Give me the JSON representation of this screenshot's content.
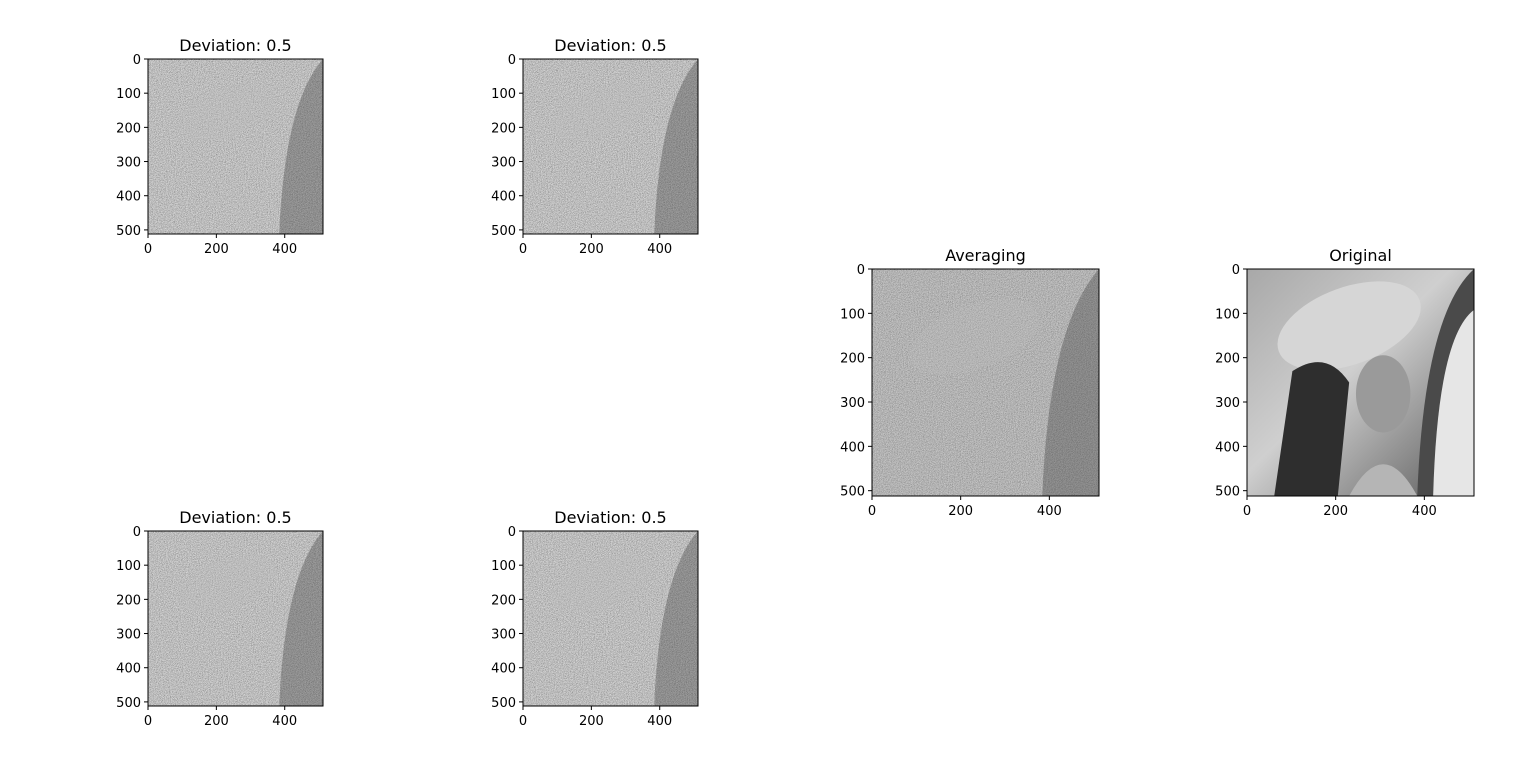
{
  "figure": {
    "background": "#ffffff",
    "colormap": "gray"
  },
  "chart_data": [
    {
      "type": "heatmap",
      "title": "Deviation: 0.5",
      "content": "noisy grayscale image",
      "xlim": [
        0,
        512
      ],
      "ylim": [
        512,
        0
      ],
      "xticks": [
        0,
        200,
        400
      ],
      "yticks": [
        0,
        100,
        200,
        300,
        400,
        500
      ]
    },
    {
      "type": "heatmap",
      "title": "Deviation: 0.5",
      "content": "noisy grayscale image",
      "xlim": [
        0,
        512
      ],
      "ylim": [
        512,
        0
      ],
      "xticks": [
        0,
        200,
        400
      ],
      "yticks": [
        0,
        100,
        200,
        300,
        400,
        500
      ]
    },
    {
      "type": "heatmap",
      "title": "Averaging",
      "content": "averaged (denoised) grayscale image",
      "xlim": [
        0,
        512
      ],
      "ylim": [
        512,
        0
      ],
      "xticks": [
        0,
        200,
        400
      ],
      "yticks": [
        0,
        100,
        200,
        300,
        400,
        500
      ]
    },
    {
      "type": "heatmap",
      "title": "Original",
      "content": "original grayscale portrait",
      "xlim": [
        0,
        512
      ],
      "ylim": [
        512,
        0
      ],
      "xticks": [
        0,
        200,
        400
      ],
      "yticks": [
        0,
        100,
        200,
        300,
        400,
        500
      ]
    },
    {
      "type": "heatmap",
      "title": "Deviation: 0.5",
      "content": "noisy grayscale image",
      "xlim": [
        0,
        512
      ],
      "ylim": [
        512,
        0
      ],
      "xticks": [
        0,
        200,
        400
      ],
      "yticks": [
        0,
        100,
        200,
        300,
        400,
        500
      ]
    },
    {
      "type": "heatmap",
      "title": "Deviation: 0.5",
      "content": "noisy grayscale image",
      "xlim": [
        0,
        512
      ],
      "ylim": [
        512,
        0
      ],
      "xticks": [
        0,
        200,
        400
      ],
      "yticks": [
        0,
        100,
        200,
        300,
        400,
        500
      ]
    }
  ]
}
